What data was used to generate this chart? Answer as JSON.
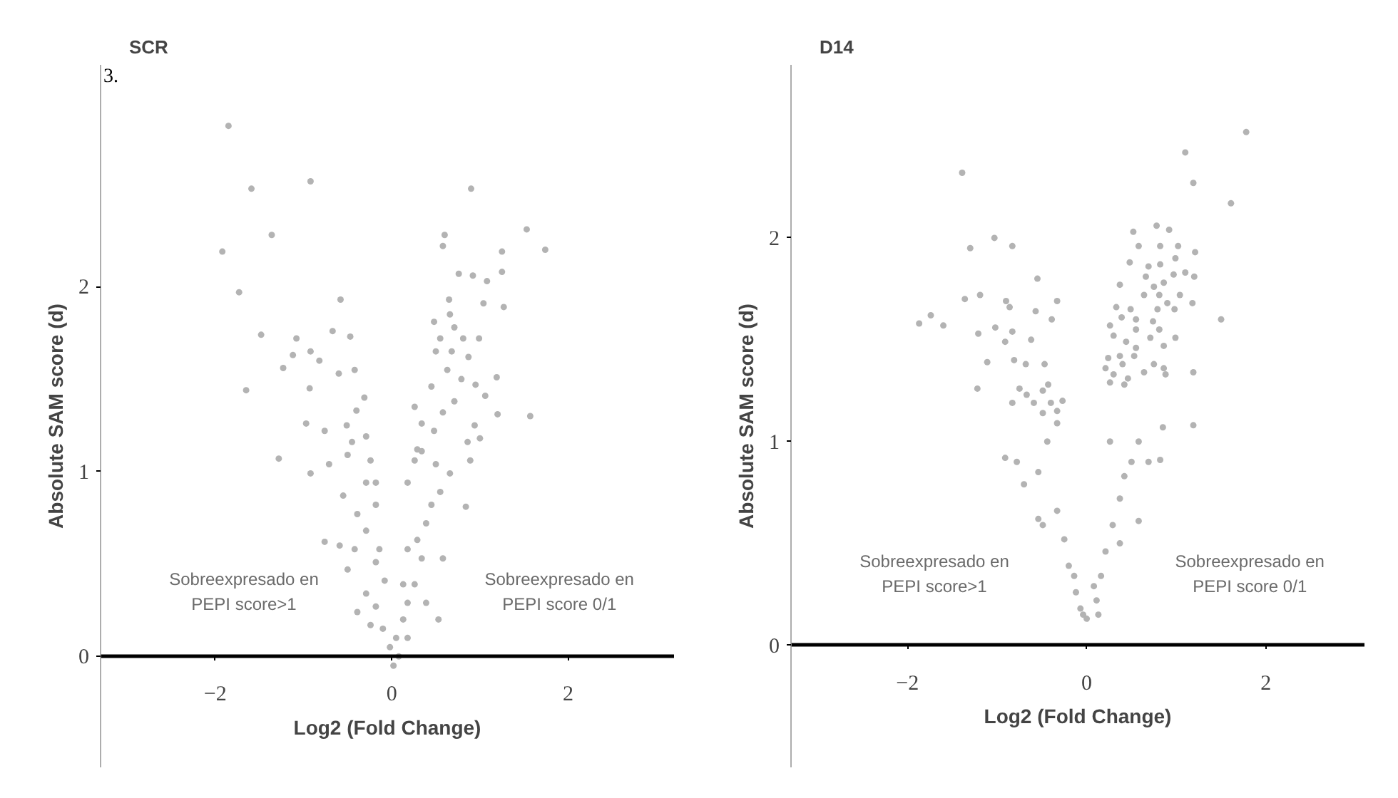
{
  "chart_data": [
    {
      "type": "scatter",
      "title": "SCR",
      "xlabel": "Log2 (Fold Change)",
      "ylabel": "Absolute SAM score (d)",
      "annotations": [
        "3.",
        "Sobreexpresado en\nPEPI score>1",
        "Sobreexpresado en\nPEPI score 0/1"
      ],
      "xlim": [
        -3.3,
        3.2
      ],
      "ylim": [
        -0.6,
        3.2
      ],
      "xticks": [
        -2,
        0,
        2
      ],
      "yticks": [
        0,
        1,
        2
      ],
      "grid": false,
      "marker": "circle",
      "series": [
        {
          "color": "#b3b3b3",
          "x": [
            -1.85,
            -1.59,
            -0.92,
            0.9,
            -1.36,
            -1.92,
            -1.73,
            1.53,
            1.74,
            -1.48,
            -0.58,
            -1.65,
            -1.28,
            1.57,
            1.2,
            1.19,
            1.27,
            1.25,
            1.25,
            0.6,
            0.58,
            -1.23,
            -1.08,
            -1.12,
            -0.93,
            -0.92,
            -0.82,
            -0.67,
            -0.47,
            -0.6,
            -0.42,
            -0.31,
            -0.97,
            -0.4,
            -0.76,
            -0.51,
            -0.29,
            -0.45,
            0.76,
            0.92,
            1.08,
            0.65,
            0.66,
            1.04,
            0.48,
            0.71,
            0.55,
            0.81,
            0.99,
            0.5,
            0.68,
            0.87,
            0.63,
            0.79,
            0.95,
            0.45,
            1.06,
            0.71,
            0.26,
            0.58,
            0.34,
            0.48,
            0.94,
            0.86,
            0.29,
            -0.92,
            -0.71,
            -0.5,
            -0.29,
            -0.55,
            -0.39,
            -0.18,
            -0.76,
            -0.42,
            -0.29,
            -0.18,
            -0.5,
            -0.29,
            -0.18,
            -0.1,
            -0.02,
            0.02,
            0.05,
            0.13,
            0.18,
            0.26,
            0.34,
            0.29,
            0.39,
            0.45,
            0.55,
            0.5,
            0.34,
            0.66,
            0.84,
            0.89,
            1.0,
            0.58,
            0.53,
            0.39,
            0.08,
            0.18,
            -0.24,
            -0.39,
            -0.59,
            -0.08,
            0.13,
            -0.14,
            0.18,
            -0.18,
            0.18,
            -0.24,
            0.26
          ],
          "values": [
            2.87,
            2.53,
            2.57,
            2.53,
            2.28,
            2.19,
            1.97,
            2.31,
            2.2,
            1.74,
            1.93,
            1.44,
            1.07,
            1.3,
            1.31,
            1.51,
            1.89,
            2.08,
            2.19,
            2.28,
            2.22,
            1.56,
            1.72,
            1.63,
            1.45,
            1.65,
            1.6,
            1.76,
            1.73,
            1.53,
            1.55,
            1.4,
            1.26,
            1.33,
            1.22,
            1.25,
            1.19,
            1.16,
            2.07,
            2.06,
            2.03,
            1.93,
            1.85,
            1.91,
            1.81,
            1.78,
            1.72,
            1.72,
            1.72,
            1.65,
            1.65,
            1.62,
            1.55,
            1.5,
            1.47,
            1.46,
            1.41,
            1.38,
            1.35,
            1.32,
            1.26,
            1.22,
            1.25,
            1.16,
            1.12,
            0.99,
            1.04,
            1.09,
            0.94,
            0.87,
            0.77,
            0.82,
            0.62,
            0.58,
            0.68,
            0.51,
            0.47,
            0.34,
            0.27,
            0.15,
            0.05,
            -0.05,
            0.1,
            0.2,
            0.29,
            0.39,
            0.53,
            0.63,
            0.72,
            0.82,
            0.89,
            1.04,
            1.11,
            0.99,
            0.81,
            1.06,
            1.18,
            0.53,
            0.2,
            0.29,
            0.0,
            0.1,
            0.17,
            0.24,
            0.6,
            0.41,
            0.39,
            0.58,
            0.58,
            0.94,
            0.94,
            1.06,
            1.06
          ]
        }
      ]
    },
    {
      "type": "scatter",
      "title": "D14",
      "xlabel": "Log2 (Fold Change)",
      "ylabel": "Absolute SAM score (d)",
      "annotations": [
        "Sobreexpresado en\nPEPI score>1",
        "Sobreexpresado en\nPEPI score 0/1"
      ],
      "xlim": [
        -3.3,
        3.1
      ],
      "ylim": [
        -0.6,
        2.85
      ],
      "xticks": [
        -2,
        0,
        2
      ],
      "yticks": [
        0,
        1,
        2
      ],
      "grid": false,
      "marker": "circle",
      "series": [
        {
          "color": "#b3b3b3",
          "x": [
            1.78,
            1.1,
            1.19,
            1.61,
            -1.39,
            -1.03,
            -1.3,
            -0.83,
            -0.55,
            -1.36,
            -1.19,
            -1.87,
            -1.74,
            -1.6,
            -0.9,
            -0.86,
            -0.57,
            -0.33,
            -0.39,
            -1.21,
            -1.02,
            -0.83,
            -0.91,
            -0.62,
            -1.11,
            -0.81,
            -0.68,
            -0.47,
            -1.22,
            -0.75,
            -0.43,
            -0.67,
            -0.49,
            -0.83,
            -0.59,
            -0.4,
            -0.27,
            -0.49,
            -0.33,
            0.52,
            0.78,
            0.92,
            0.58,
            0.82,
            1.02,
            1.21,
            0.48,
            0.69,
            0.82,
            0.99,
            0.66,
            0.97,
            1.1,
            1.2,
            0.37,
            0.75,
            0.86,
            0.64,
            0.81,
            1.04,
            1.5,
            1.18,
            0.9,
            0.98,
            0.79,
            0.33,
            0.49,
            0.39,
            0.55,
            0.26,
            0.74,
            0.55,
            0.81,
            0.71,
            0.99,
            0.3,
            0.44,
            0.55,
            0.86,
            0.24,
            0.37,
            0.53,
            0.21,
            0.4,
            0.75,
            0.86,
            0.3,
            0.46,
            0.64,
            1.19,
            0.88,
            0.26,
            0.42,
            1.19,
            0.85,
            0.82,
            0.69,
            -0.91,
            -0.78,
            -0.7,
            -0.54,
            -0.49,
            -0.33,
            -0.25,
            -0.2,
            -0.12,
            -0.04,
            0.0,
            0.11,
            0.16,
            0.21,
            0.29,
            0.37,
            0.42,
            0.5,
            0.58,
            0.58,
            0.26,
            -0.44,
            -0.33,
            0.13,
            -0.07,
            0.08,
            -0.14,
            -0.54,
            0.37
          ],
          "values": [
            2.52,
            2.42,
            2.27,
            2.17,
            2.32,
            2.0,
            1.95,
            1.96,
            1.8,
            1.7,
            1.72,
            1.58,
            1.62,
            1.57,
            1.69,
            1.66,
            1.64,
            1.69,
            1.6,
            1.53,
            1.56,
            1.54,
            1.49,
            1.5,
            1.39,
            1.4,
            1.38,
            1.38,
            1.26,
            1.26,
            1.28,
            1.23,
            1.25,
            1.19,
            1.19,
            1.19,
            1.2,
            1.14,
            1.15,
            2.03,
            2.06,
            2.04,
            1.96,
            1.96,
            1.96,
            1.93,
            1.88,
            1.86,
            1.87,
            1.9,
            1.81,
            1.82,
            1.83,
            1.81,
            1.77,
            1.76,
            1.78,
            1.72,
            1.72,
            1.72,
            1.6,
            1.68,
            1.68,
            1.65,
            1.65,
            1.66,
            1.65,
            1.61,
            1.6,
            1.57,
            1.59,
            1.55,
            1.55,
            1.51,
            1.51,
            1.52,
            1.49,
            1.46,
            1.47,
            1.41,
            1.42,
            1.42,
            1.36,
            1.38,
            1.38,
            1.36,
            1.33,
            1.31,
            1.34,
            1.34,
            1.33,
            1.29,
            1.28,
            1.08,
            1.07,
            0.91,
            0.9,
            0.92,
            0.9,
            0.79,
            0.85,
            0.59,
            0.66,
            0.52,
            0.39,
            0.26,
            0.15,
            0.13,
            0.22,
            0.34,
            0.46,
            0.59,
            0.72,
            0.83,
            0.9,
            0.61,
            1.0,
            1.0,
            1.0,
            1.09,
            0.15,
            0.18,
            0.29,
            0.34,
            0.62,
            0.5
          ]
        }
      ]
    }
  ]
}
